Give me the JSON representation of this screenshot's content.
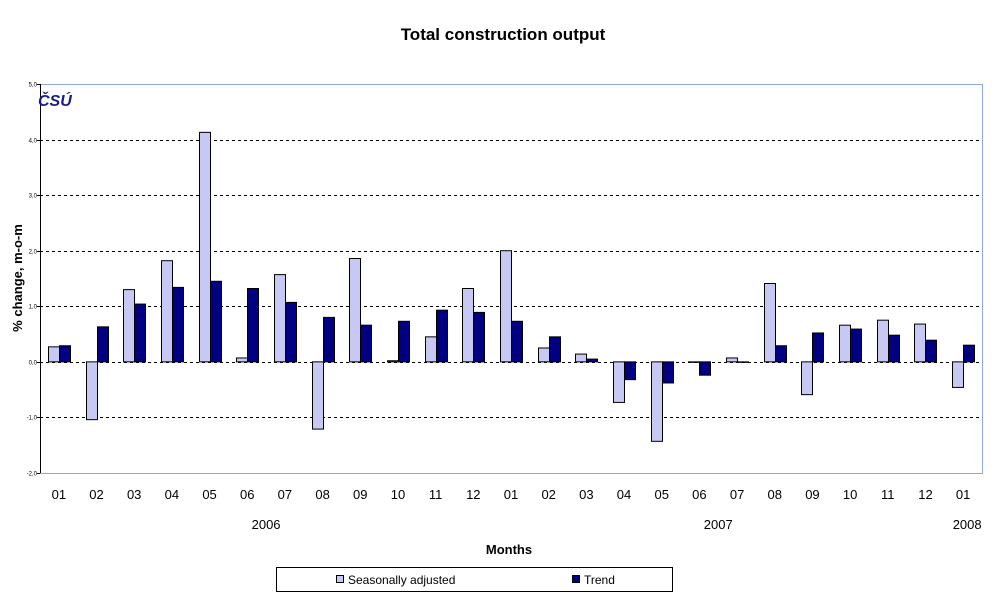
{
  "chart_data": {
    "type": "bar",
    "title": "Total construction output",
    "xlabel": "Months",
    "ylabel": "% change, m-o-m",
    "ylim": [
      -2.0,
      5.0
    ],
    "yticks": [
      "5,0",
      "4,0",
      "3,0",
      "2,0",
      "1,0",
      "0,0",
      "-1,0",
      "-2,0"
    ],
    "ytick_values": [
      5,
      4,
      3,
      2,
      1,
      0,
      -1,
      -2
    ],
    "grid": "horizontal dashed",
    "legend_position": "bottom",
    "logo_text": "ČSÚ",
    "categories": [
      "01",
      "02",
      "03",
      "04",
      "05",
      "06",
      "07",
      "08",
      "09",
      "10",
      "11",
      "12",
      "01",
      "02",
      "03",
      "04",
      "05",
      "06",
      "07",
      "08",
      "09",
      "10",
      "11",
      "12",
      "01"
    ],
    "years": [
      {
        "label": "2006",
        "first_index": 0,
        "last_index": 11
      },
      {
        "label": "2007",
        "first_index": 12,
        "last_index": 23
      },
      {
        "label": "2008",
        "first_index": 24,
        "last_index": 24
      }
    ],
    "series": [
      {
        "name": "Seasonally adjusted",
        "color": "#c8c8f4",
        "values": [
          0.27,
          -1.04,
          1.3,
          1.82,
          4.13,
          0.07,
          1.57,
          -1.21,
          1.86,
          0.02,
          0.45,
          1.32,
          2.0,
          0.25,
          0.14,
          -0.73,
          -1.43,
          0.0,
          0.07,
          1.41,
          -0.59,
          0.66,
          0.75,
          0.68,
          -0.46
        ]
      },
      {
        "name": "Trend",
        "color": "#000080",
        "values": [
          0.29,
          0.63,
          1.04,
          1.34,
          1.45,
          1.32,
          1.07,
          0.8,
          0.66,
          0.73,
          0.93,
          0.89,
          0.73,
          0.45,
          0.05,
          -0.32,
          -0.38,
          -0.24,
          0.0,
          0.29,
          0.52,
          0.59,
          0.48,
          0.39,
          0.3
        ]
      }
    ]
  }
}
